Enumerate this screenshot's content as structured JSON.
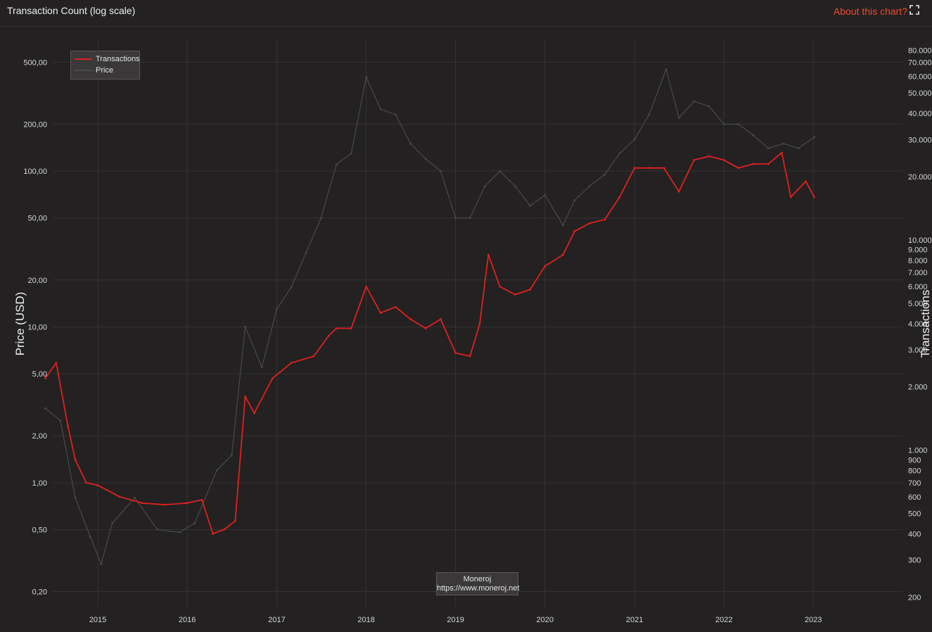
{
  "header": {
    "title": "Transaction Count (log scale)",
    "about_label": "About this chart?",
    "expand_icon": "expand-icon"
  },
  "credit": {
    "line1": "Moneroj",
    "line2": "https://www.moneroj.net"
  },
  "colors": {
    "transactions": "#e02020",
    "price": "#4a4a4a",
    "accent": "#f04a30",
    "grid": "#353232",
    "background": "#232121"
  },
  "chart_data": {
    "type": "line",
    "title": "Transaction Count (log scale)",
    "x_ticks": [
      "2015",
      "2016",
      "2017",
      "2018",
      "2019",
      "2020",
      "2021",
      "2022",
      "2023"
    ],
    "xlim": [
      "2014-07-01",
      "2023-12-31"
    ],
    "y_left": {
      "label": "Price (USD)",
      "scale": "log",
      "range": [
        0.16,
        700
      ],
      "ticks": [
        500,
        200,
        100,
        50,
        20,
        10,
        5,
        2,
        1,
        0.5,
        0.2
      ],
      "tick_labels": [
        "500,00",
        "200,00",
        "100,00",
        "50,00",
        "20,00",
        "10,00",
        "5,00",
        "2,00",
        "1,00",
        "0,50",
        "0,20"
      ]
    },
    "y_right": {
      "label": "Transactions",
      "scale": "log",
      "range": [
        180,
        90000
      ],
      "ticks": [
        80000,
        70000,
        60000,
        50000,
        40000,
        30000,
        20000,
        10000,
        9000,
        8000,
        7000,
        6000,
        5000,
        4000,
        3000,
        2000,
        1000,
        900,
        800,
        700,
        600,
        500,
        400,
        300,
        200
      ],
      "tick_labels": [
        "80.000",
        "70.000",
        "60.000",
        "50.000",
        "40.000",
        "30.000",
        "20.000",
        "10.000",
        "9.000",
        "8.000",
        "7.000",
        "6.000",
        "5.000",
        "4.000",
        "3.000",
        "2.000",
        "1.000",
        "900",
        "800",
        "700",
        "600",
        "500",
        "400",
        "300",
        "200"
      ]
    },
    "legend": {
      "position": "top-left",
      "entries": [
        "Transactions",
        "Price"
      ]
    },
    "grid": true,
    "series": [
      {
        "name": "Transactions",
        "axis": "right",
        "color": "#e02020",
        "points": [
          [
            "2014-06-01",
            2200
          ],
          [
            "2014-07-15",
            2600
          ],
          [
            "2014-09-01",
            1300
          ],
          [
            "2014-10-01",
            900
          ],
          [
            "2014-11-15",
            700
          ],
          [
            "2015-01-01",
            680
          ],
          [
            "2015-04-01",
            600
          ],
          [
            "2015-07-01",
            560
          ],
          [
            "2015-10-01",
            550
          ],
          [
            "2016-01-01",
            560
          ],
          [
            "2016-03-01",
            580
          ],
          [
            "2016-04-15",
            400
          ],
          [
            "2016-06-01",
            420
          ],
          [
            "2016-07-15",
            460
          ],
          [
            "2016-08-25",
            1800
          ],
          [
            "2016-10-01",
            1500
          ],
          [
            "2016-12-15",
            2200
          ],
          [
            "2017-03-01",
            2600
          ],
          [
            "2017-06-01",
            2800
          ],
          [
            "2017-08-01",
            3500
          ],
          [
            "2017-09-01",
            3800
          ],
          [
            "2017-11-01",
            3800
          ],
          [
            "2018-01-01",
            6000
          ],
          [
            "2018-03-01",
            4500
          ],
          [
            "2018-05-01",
            4800
          ],
          [
            "2018-07-01",
            4200
          ],
          [
            "2018-09-01",
            3800
          ],
          [
            "2018-11-01",
            4200
          ],
          [
            "2019-01-01",
            2900
          ],
          [
            "2019-03-01",
            2800
          ],
          [
            "2019-04-10",
            4000
          ],
          [
            "2019-05-15",
            8500
          ],
          [
            "2019-07-01",
            6000
          ],
          [
            "2019-09-01",
            5500
          ],
          [
            "2019-11-01",
            5800
          ],
          [
            "2020-01-01",
            7500
          ],
          [
            "2020-03-15",
            8500
          ],
          [
            "2020-05-01",
            11000
          ],
          [
            "2020-07-01",
            12000
          ],
          [
            "2020-09-01",
            12500
          ],
          [
            "2020-11-01",
            16000
          ],
          [
            "2021-01-01",
            22000
          ],
          [
            "2021-03-01",
            22000
          ],
          [
            "2021-05-01",
            22000
          ],
          [
            "2021-07-01",
            17000
          ],
          [
            "2021-09-01",
            24000
          ],
          [
            "2021-11-01",
            25000
          ],
          [
            "2022-01-01",
            24000
          ],
          [
            "2022-03-01",
            22000
          ],
          [
            "2022-05-01",
            23000
          ],
          [
            "2022-07-01",
            23000
          ],
          [
            "2022-08-25",
            26000
          ],
          [
            "2022-10-01",
            16000
          ],
          [
            "2022-12-01",
            19000
          ],
          [
            "2023-01-05",
            16000
          ]
        ]
      },
      {
        "name": "Price",
        "axis": "left",
        "color": "#4a4a4a",
        "points": [
          [
            "2014-06-01",
            3.0
          ],
          [
            "2014-08-01",
            2.5
          ],
          [
            "2014-10-01",
            0.8
          ],
          [
            "2014-12-01",
            0.45
          ],
          [
            "2015-01-15",
            0.3
          ],
          [
            "2015-03-01",
            0.55
          ],
          [
            "2015-06-01",
            0.8
          ],
          [
            "2015-09-01",
            0.5
          ],
          [
            "2015-12-01",
            0.48
          ],
          [
            "2016-02-01",
            0.55
          ],
          [
            "2016-05-01",
            1.2
          ],
          [
            "2016-07-01",
            1.5
          ],
          [
            "2016-08-25",
            10.0
          ],
          [
            "2016-11-01",
            5.5
          ],
          [
            "2017-01-01",
            13.0
          ],
          [
            "2017-03-01",
            18.0
          ],
          [
            "2017-05-01",
            30.0
          ],
          [
            "2017-07-01",
            50.0
          ],
          [
            "2017-09-01",
            110.0
          ],
          [
            "2017-11-01",
            130.0
          ],
          [
            "2018-01-01",
            400.0
          ],
          [
            "2018-03-01",
            250.0
          ],
          [
            "2018-05-01",
            230.0
          ],
          [
            "2018-07-01",
            150.0
          ],
          [
            "2018-09-01",
            120.0
          ],
          [
            "2018-11-01",
            100.0
          ],
          [
            "2019-01-01",
            50.0
          ],
          [
            "2019-03-01",
            50.0
          ],
          [
            "2019-05-01",
            80.0
          ],
          [
            "2019-07-01",
            100.0
          ],
          [
            "2019-09-01",
            80.0
          ],
          [
            "2019-11-01",
            60.0
          ],
          [
            "2020-01-01",
            70.0
          ],
          [
            "2020-03-15",
            45.0
          ],
          [
            "2020-05-01",
            65.0
          ],
          [
            "2020-07-01",
            80.0
          ],
          [
            "2020-09-01",
            95.0
          ],
          [
            "2020-11-01",
            130.0
          ],
          [
            "2021-01-01",
            160.0
          ],
          [
            "2021-03-01",
            230.0
          ],
          [
            "2021-05-10",
            450.0
          ],
          [
            "2021-07-01",
            220.0
          ],
          [
            "2021-09-01",
            280.0
          ],
          [
            "2021-11-01",
            260.0
          ],
          [
            "2022-01-01",
            200.0
          ],
          [
            "2022-03-01",
            200.0
          ],
          [
            "2022-05-01",
            170.0
          ],
          [
            "2022-07-01",
            140.0
          ],
          [
            "2022-09-01",
            150.0
          ],
          [
            "2022-11-01",
            140.0
          ],
          [
            "2023-01-05",
            165.0
          ]
        ]
      }
    ]
  }
}
